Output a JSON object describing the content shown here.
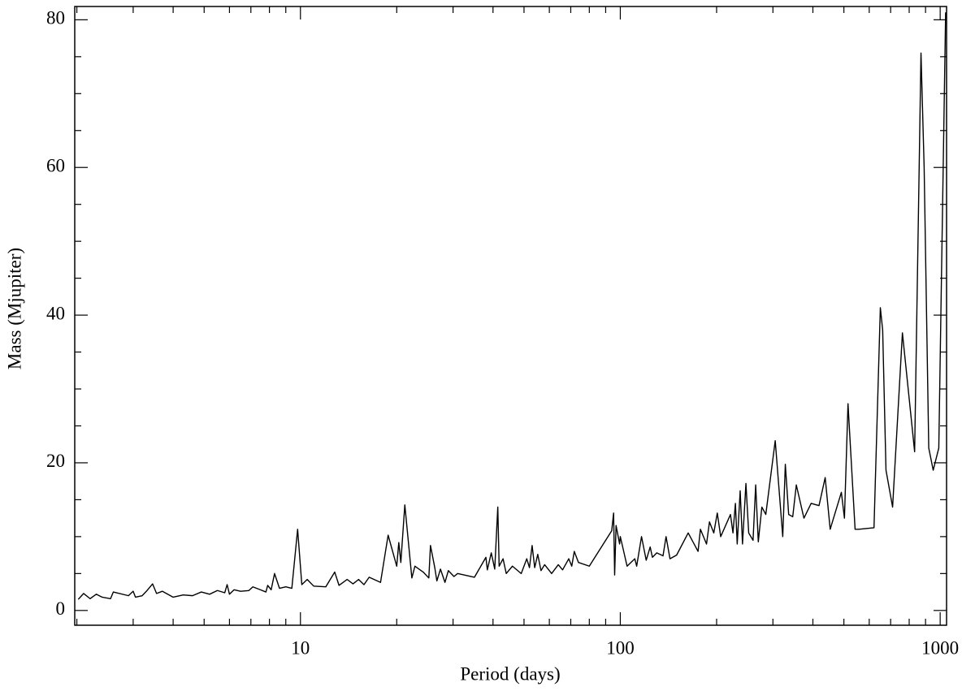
{
  "chart_data": {
    "type": "line",
    "xlabel": "Period (days)",
    "ylabel": "Mass (Mjupiter)",
    "xscale": "log",
    "color": "#000000",
    "xlim": [
      1.97,
      1047
    ],
    "ylim": [
      -2,
      81.8
    ],
    "xticks": [
      10,
      100,
      1000
    ],
    "x_minor_ticks": [
      2,
      3,
      4,
      5,
      6,
      7,
      8,
      9,
      20,
      30,
      40,
      50,
      60,
      70,
      80,
      90,
      200,
      300,
      400,
      500,
      600,
      700,
      800,
      900
    ],
    "yticks": [
      0,
      20,
      40,
      60,
      80
    ],
    "y_minor_ticks": [
      5,
      10,
      15,
      25,
      30,
      35,
      45,
      50,
      55,
      65,
      70,
      75
    ],
    "x": [
      2.02,
      2.1,
      2.2,
      2.3,
      2.4,
      2.55,
      2.6,
      2.9,
      3.0,
      3.05,
      3.2,
      3.3,
      3.45,
      3.55,
      3.7,
      4.0,
      4.3,
      4.6,
      4.9,
      5.2,
      5.5,
      5.8,
      5.9,
      6.0,
      6.2,
      6.5,
      6.9,
      7.1,
      7.5,
      7.8,
      7.9,
      8.1,
      8.3,
      8.6,
      9.0,
      9.4,
      9.8,
      10.1,
      10.5,
      11,
      12,
      12.8,
      13.2,
      14,
      14.6,
      15.2,
      15.8,
      16.4,
      17.8,
      18.8,
      20,
      20.3,
      20.6,
      21.2,
      22.3,
      22.8,
      24.2,
      25.2,
      25.5,
      26.3,
      26.7,
      27.4,
      28.3,
      29,
      30.2,
      31,
      35,
      38,
      38.4,
      39.5,
      40.5,
      41.4,
      41.8,
      43,
      44,
      46,
      49,
      51,
      52,
      53,
      54,
      55.2,
      56.5,
      58,
      61,
      64,
      66,
      69,
      70.5,
      71.8,
      74,
      80,
      94,
      95.3,
      96,
      97,
      99.5,
      100,
      105,
      111,
      112.5,
      116.5,
      120.5,
      124,
      126,
      130,
      136,
      139,
      143,
      150,
      163,
      175,
      178,
      186,
      190,
      196,
      201,
      206,
      221,
      225,
      229,
      232,
      237,
      241,
      247,
      252,
      260,
      265,
      270,
      277,
      285,
      305,
      322,
      328,
      336,
      346,
      355,
      375,
      395,
      418,
      437,
      453,
      491,
      502,
      515,
      542,
      557,
      621,
      650,
      661,
      677,
      710,
      762,
      832,
      871,
      891,
      921,
      951,
      990,
      1040
    ],
    "values": [
      1.5,
      2.3,
      1.6,
      2.2,
      1.8,
      1.6,
      2.5,
      2.0,
      2.6,
      1.8,
      2.0,
      2.6,
      3.6,
      2.3,
      2.6,
      1.8,
      2.1,
      2.0,
      2.5,
      2.2,
      2.7,
      2.4,
      3.5,
      2.2,
      2.8,
      2.6,
      2.7,
      3.2,
      2.8,
      2.5,
      3.4,
      2.8,
      5.0,
      3.0,
      3.2,
      3.0,
      11.0,
      3.5,
      4.2,
      3.3,
      3.2,
      5.2,
      3.4,
      4.2,
      3.6,
      4.2,
      3.5,
      4.5,
      3.8,
      10.2,
      6.0,
      9.2,
      6.5,
      14.3,
      4.4,
      6.0,
      5.2,
      4.4,
      8.8,
      5.8,
      4.0,
      5.6,
      3.8,
      5.4,
      4.6,
      5.0,
      4.5,
      7.2,
      5.5,
      7.8,
      5.6,
      14.0,
      6.0,
      7.0,
      5.0,
      6.0,
      5.0,
      7.0,
      5.8,
      8.8,
      5.8,
      7.6,
      5.4,
      6.2,
      5.0,
      6.2,
      5.5,
      7.0,
      6.0,
      8.0,
      6.5,
      6.0,
      10.8,
      13.2,
      4.8,
      11.5,
      9.0,
      10.0,
      6.0,
      7.0,
      6.0,
      10.0,
      6.8,
      8.6,
      7.2,
      7.8,
      7.4,
      10.0,
      7.0,
      7.5,
      10.5,
      8.0,
      11.0,
      9.0,
      12.0,
      10.5,
      13.2,
      10.0,
      13.0,
      10.5,
      14.5,
      9.0,
      16.2,
      9.0,
      17.2,
      10.5,
      9.5,
      17.0,
      9.3,
      14.0,
      13.0,
      23.0,
      10.0,
      19.8,
      13.0,
      12.7,
      17.0,
      12.5,
      14.5,
      14.2,
      18.0,
      11.0,
      16.0,
      12.5,
      28.0,
      11.0,
      11.0,
      11.2,
      41.0,
      38.0,
      19.0,
      14.0,
      37.6,
      21.5,
      75.5,
      60.0,
      22.0,
      19.0,
      22.0,
      81.0
    ]
  }
}
